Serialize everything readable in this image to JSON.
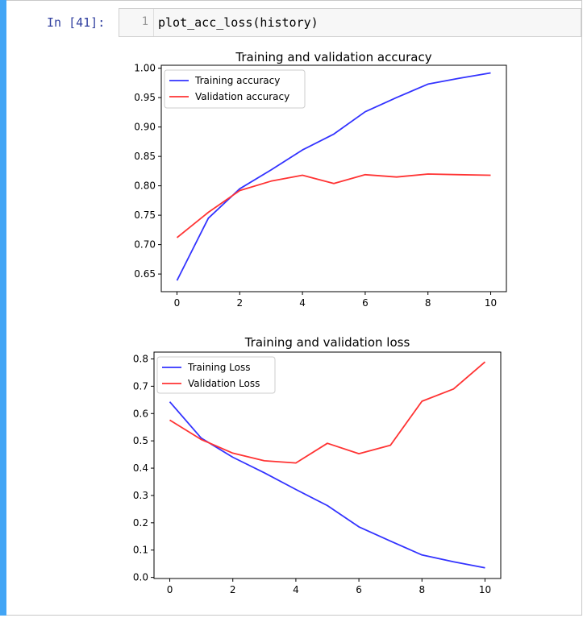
{
  "cell": {
    "prompt": "In [41]:",
    "line_number": "1",
    "code": "plot_acc_loss(history)",
    "accent_color": "#42a5f5",
    "prompt_color": "#303f9f"
  },
  "chart_data": [
    {
      "type": "line",
      "title": "Training and validation accuracy",
      "xlabel": "",
      "ylabel": "",
      "xlim": [
        -0.5,
        10.5
      ],
      "ylim": [
        0.62,
        1.005
      ],
      "xticks": [
        0,
        2,
        4,
        6,
        8,
        10
      ],
      "yticks": [
        0.65,
        0.7,
        0.75,
        0.8,
        0.85,
        0.9,
        0.95,
        1.0
      ],
      "ytick_labels": [
        "0.65",
        "0.70",
        "0.75",
        "0.80",
        "0.85",
        "0.90",
        "0.95",
        "1.00"
      ],
      "legend_placement": "upper-left",
      "grid": false,
      "x": [
        0,
        1,
        2,
        3,
        4,
        5,
        6,
        7,
        8,
        9,
        10
      ],
      "series": [
        {
          "name": "Training accuracy",
          "color": "#3333ff",
          "values": [
            0.639,
            0.745,
            0.795,
            0.827,
            0.861,
            0.888,
            0.926,
            0.95,
            0.973,
            0.983,
            0.992
          ]
        },
        {
          "name": "Validation accuracy",
          "color": "#ff3333",
          "values": [
            0.712,
            0.755,
            0.792,
            0.808,
            0.818,
            0.804,
            0.819,
            0.815,
            0.82,
            0.819,
            0.818
          ]
        }
      ]
    },
    {
      "type": "line",
      "title": "Training and validation loss",
      "xlabel": "",
      "ylabel": "",
      "xlim": [
        -0.5,
        10.5
      ],
      "ylim": [
        -0.004,
        0.825
      ],
      "xticks": [
        0,
        2,
        4,
        6,
        8,
        10
      ],
      "yticks": [
        0.0,
        0.1,
        0.2,
        0.3,
        0.4,
        0.5,
        0.6,
        0.7,
        0.8
      ],
      "ytick_labels": [
        "0.0",
        "0.1",
        "0.2",
        "0.3",
        "0.4",
        "0.5",
        "0.6",
        "0.7",
        "0.8"
      ],
      "legend_placement": "upper-left",
      "grid": false,
      "x": [
        0,
        1,
        2,
        3,
        4,
        5,
        6,
        7,
        8,
        9,
        10
      ],
      "series": [
        {
          "name": "Training Loss",
          "color": "#3333ff",
          "values": [
            0.643,
            0.51,
            0.44,
            0.383,
            0.322,
            0.263,
            0.185,
            0.133,
            0.082,
            0.057,
            0.035
          ]
        },
        {
          "name": "Validation Loss",
          "color": "#ff3333",
          "values": [
            0.576,
            0.505,
            0.455,
            0.427,
            0.419,
            0.491,
            0.453,
            0.484,
            0.645,
            0.69,
            0.789
          ]
        }
      ]
    }
  ]
}
